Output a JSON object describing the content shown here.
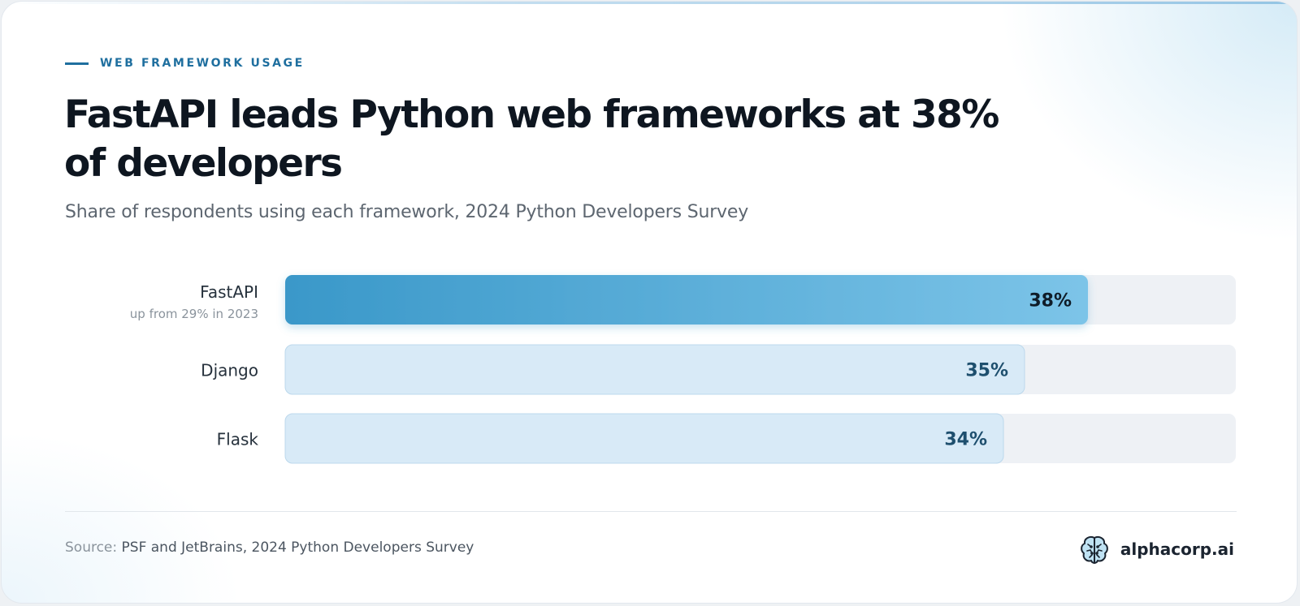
{
  "eyebrow": "WEB FRAMEWORK USAGE",
  "title": "FastAPI leads Python web frameworks at 38% of developers",
  "subtitle": "Share of respondents using each framework, 2024 Python Developers Survey",
  "footer": {
    "source_label": "Source:",
    "source_text": "PSF and JetBrains, 2024 Python Developers Survey",
    "brand": "alphacorp.ai",
    "brand_icon": "brain-icon"
  },
  "colors": {
    "accent": "#1f6f9f",
    "highlight_bar_start": "#3a98c9",
    "highlight_bar_end": "#7cc4e8",
    "muted_bar": "#d8eaf7",
    "track": "#eef1f5"
  },
  "chart_data": {
    "type": "bar",
    "orientation": "horizontal",
    "categories": [
      "FastAPI",
      "Django",
      "Flask"
    ],
    "values": [
      38,
      35,
      34
    ],
    "value_labels": [
      "38%",
      "35%",
      "34%"
    ],
    "annotations": [
      "up from 29% in 2023",
      "",
      ""
    ],
    "highlight": "FastAPI",
    "unit": "%",
    "xlim": [
      0,
      45
    ],
    "grid": false,
    "legend": "none"
  }
}
